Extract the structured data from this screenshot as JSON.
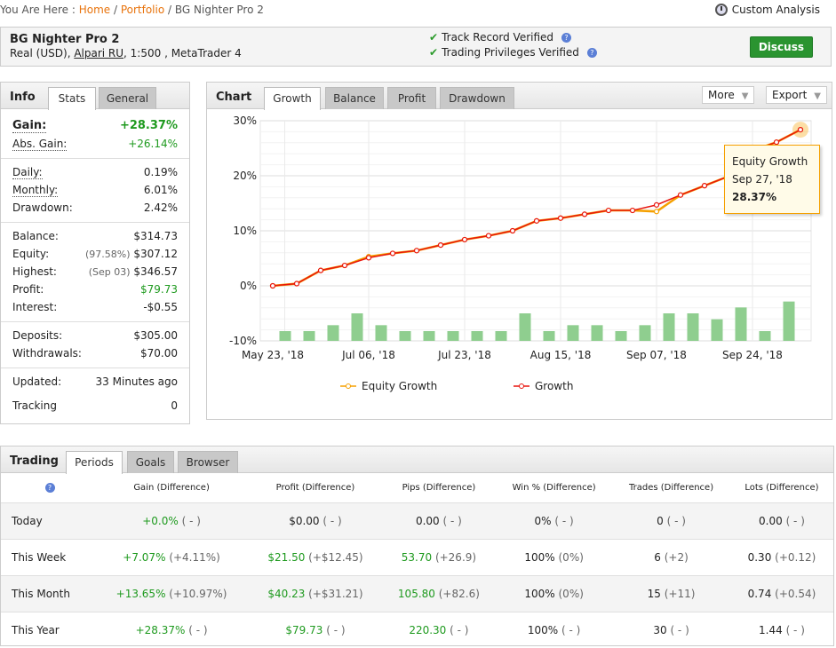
{
  "breadcrumb": {
    "prefix": "You Are Here : ",
    "home": "Home",
    "portfolio": "Portfolio",
    "current": "BG Nighter Pro 2"
  },
  "custom_analysis": "Custom Analysis",
  "header": {
    "title": "BG Nighter Pro 2",
    "sub_pre": "Real (USD), ",
    "broker": "Alpari RU",
    "sub_post": ", 1:500 , MetaTrader 4",
    "verify1": "Track Record Verified",
    "verify2": "Trading Privileges Verified",
    "discuss": "Discuss"
  },
  "info": {
    "title": "Info",
    "tabs": [
      "Stats",
      "General"
    ],
    "gain_label": "Gain:",
    "gain": "+28.37%",
    "abs_gain_label": "Abs. Gain:",
    "abs_gain": "+26.14%",
    "daily_label": "Daily:",
    "daily": "0.19%",
    "monthly_label": "Monthly:",
    "monthly": "6.01%",
    "drawdown_label": "Drawdown:",
    "drawdown": "2.42%",
    "balance_label": "Balance:",
    "balance": "$314.73",
    "equity_label": "Equity:",
    "equity_pct": "(97.58%)",
    "equity": "$307.12",
    "highest_label": "Highest:",
    "highest_date": "(Sep 03)",
    "highest": "$346.57",
    "profit_label": "Profit:",
    "profit": "$79.73",
    "interest_label": "Interest:",
    "interest": "-$0.55",
    "deposits_label": "Deposits:",
    "deposits": "$305.00",
    "withdrawals_label": "Withdrawals:",
    "withdrawals": "$70.00",
    "updated_label": "Updated:",
    "updated": "33 Minutes ago",
    "tracking_label": "Tracking",
    "tracking": "0"
  },
  "chart": {
    "title": "Chart",
    "tabs": [
      "Growth",
      "Balance",
      "Profit",
      "Drawdown"
    ],
    "more": "More",
    "export": "Export",
    "tooltip": {
      "series": "Equity Growth",
      "date": "Sep 27, '18",
      "value": "28.37%"
    },
    "colors": {
      "equity": "#f5a000",
      "growth": "#e8150e",
      "bars": "#8fce8f"
    }
  },
  "chart_data": {
    "type": "line",
    "ylim": [
      -10,
      30
    ],
    "yticks": [
      "30%",
      "20%",
      "10%",
      "0%",
      "-10%"
    ],
    "ytick_values": [
      30,
      20,
      10,
      0,
      -10
    ],
    "xlabels": [
      {
        "i": 0,
        "label": "May 23, '18"
      },
      {
        "i": 4,
        "label": "Jul 06, '18"
      },
      {
        "i": 8,
        "label": "Jul 23, '18"
      },
      {
        "i": 12,
        "label": "Aug 15, '18"
      },
      {
        "i": 16,
        "label": "Sep 07, '18"
      },
      {
        "i": 20,
        "label": "Sep 24, '18"
      }
    ],
    "series": [
      {
        "name": "Equity Growth",
        "values": [
          0,
          0.4,
          2.8,
          3.7,
          5.3,
          5.9,
          6.4,
          7.4,
          8.4,
          9.1,
          10.0,
          11.8,
          12.3,
          13.0,
          13.7,
          13.7,
          13.5,
          16.5,
          18.2,
          19.9,
          24.6,
          26.1,
          28.37
        ]
      },
      {
        "name": "Growth",
        "values": [
          0,
          0.4,
          2.8,
          3.7,
          5.1,
          5.9,
          6.4,
          7.4,
          8.4,
          9.1,
          10.0,
          11.8,
          12.3,
          13.0,
          13.7,
          13.7,
          14.7,
          16.5,
          18.2,
          19.9,
          24.6,
          26.1,
          28.37
        ]
      }
    ],
    "bars": [
      1,
      1,
      2,
      4,
      2,
      1,
      1,
      1,
      1,
      1,
      4,
      1,
      2,
      2,
      1,
      2,
      4,
      4,
      3,
      5,
      1,
      6
    ]
  },
  "trading": {
    "title": "Trading",
    "tabs": [
      "Periods",
      "Goals",
      "Browser"
    ],
    "headers": [
      "Gain (Difference)",
      "Profit (Difference)",
      "Pips (Difference)",
      "Win % (Difference)",
      "Trades (Difference)",
      "Lots (Difference)"
    ],
    "rows": [
      {
        "period": "Today",
        "gain": "+0.0%",
        "gain_d": "( - )",
        "profit": "$0.00",
        "profit_d": "( - )",
        "pips": "0.00",
        "pips_d": "( - )",
        "win": "0%",
        "win_d": "( - )",
        "trades": "0",
        "trades_d": "( - )",
        "lots": "0.00",
        "lots_d": "( - )"
      },
      {
        "period": "This Week",
        "gain": "+7.07%",
        "gain_d": "(+4.11%)",
        "profit": "$21.50",
        "profit_d": "(+$12.45)",
        "pips": "53.70",
        "pips_d": "(+26.9)",
        "win": "100%",
        "win_d": "(0%)",
        "trades": "6",
        "trades_d": "(+2)",
        "lots": "0.30",
        "lots_d": "(+0.12)"
      },
      {
        "period": "This Month",
        "gain": "+13.65%",
        "gain_d": "(+10.97%)",
        "profit": "$40.23",
        "profit_d": "(+$31.21)",
        "pips": "105.80",
        "pips_d": "(+82.6)",
        "win": "100%",
        "win_d": "(0%)",
        "trades": "15",
        "trades_d": "(+11)",
        "lots": "0.74",
        "lots_d": "(+0.54)"
      },
      {
        "period": "This Year",
        "gain": "+28.37%",
        "gain_d": "( - )",
        "profit": "$79.73",
        "profit_d": "( - )",
        "pips": "220.30",
        "pips_d": "( - )",
        "win": "100%",
        "win_d": "( - )",
        "trades": "30",
        "trades_d": "( - )",
        "lots": "1.44",
        "lots_d": "( - )"
      }
    ]
  }
}
